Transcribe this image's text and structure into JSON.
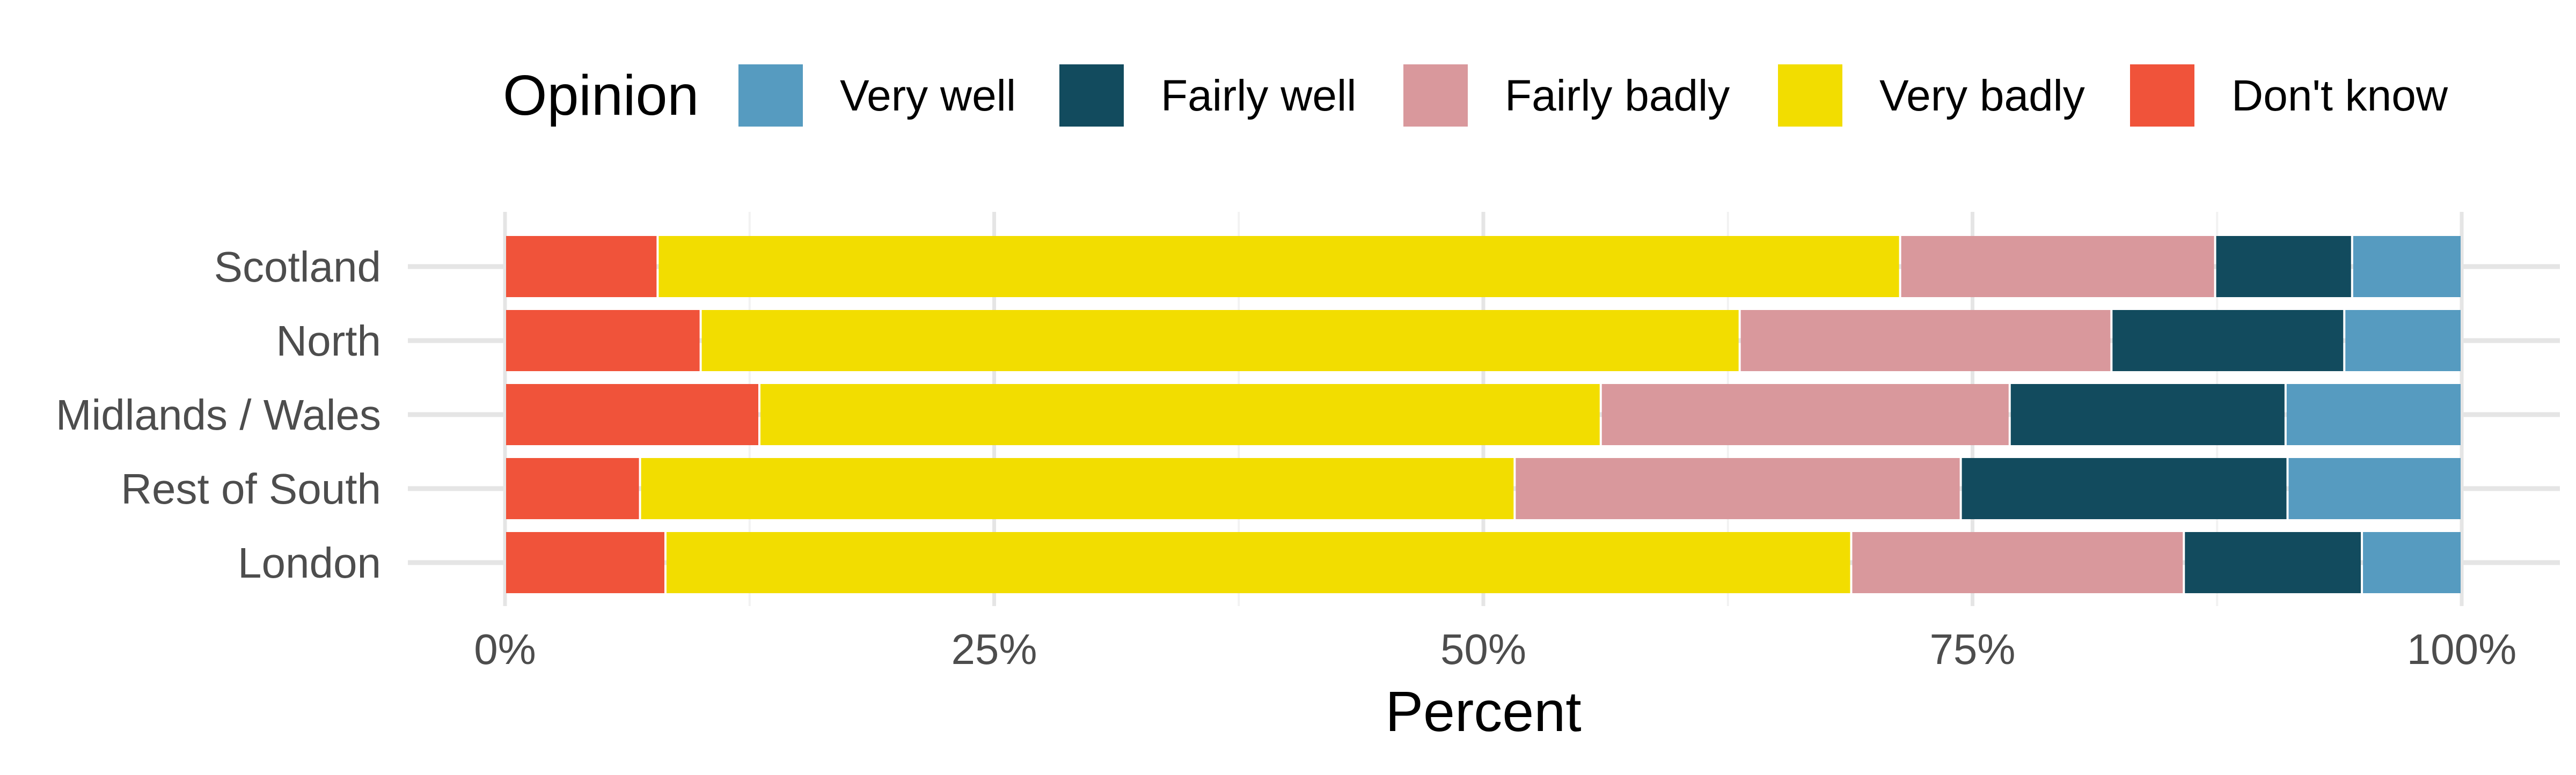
{
  "chart_data": {
    "type": "bar",
    "orientation": "horizontal",
    "stacked": true,
    "categories": [
      "Scotland",
      "North",
      "Midlands / Wales",
      "Rest of South",
      "London"
    ],
    "series": [
      {
        "name": "Don't know",
        "color": "#F0533A",
        "values": [
          7.8,
          10.0,
          13.0,
          6.9,
          8.2
        ]
      },
      {
        "name": "Very badly",
        "color": "#F2DD00",
        "values": [
          63.5,
          53.1,
          43.0,
          44.7,
          60.6
        ]
      },
      {
        "name": "Fairly badly",
        "color": "#D9989C",
        "values": [
          16.1,
          19.0,
          20.9,
          22.8,
          17.0
        ]
      },
      {
        "name": "Fairly well",
        "color": "#124B5E",
        "values": [
          7.0,
          11.9,
          14.1,
          16.7,
          9.1
        ]
      },
      {
        "name": "Very well",
        "color": "#569BC0",
        "values": [
          5.6,
          6.0,
          9.0,
          8.9,
          5.1
        ]
      }
    ],
    "legend": {
      "title": "Opinion",
      "position": "top",
      "order": [
        "Very well",
        "Fairly well",
        "Fairly badly",
        "Very badly",
        "Don't know"
      ]
    },
    "xlabel": "Percent",
    "ylabel": "",
    "xlim": [
      0,
      100
    ],
    "xticks": [
      0,
      25,
      50,
      75,
      100
    ],
    "xtick_labels": [
      "0%",
      "25%",
      "50%",
      "75%",
      "100%"
    ],
    "grid": true
  }
}
